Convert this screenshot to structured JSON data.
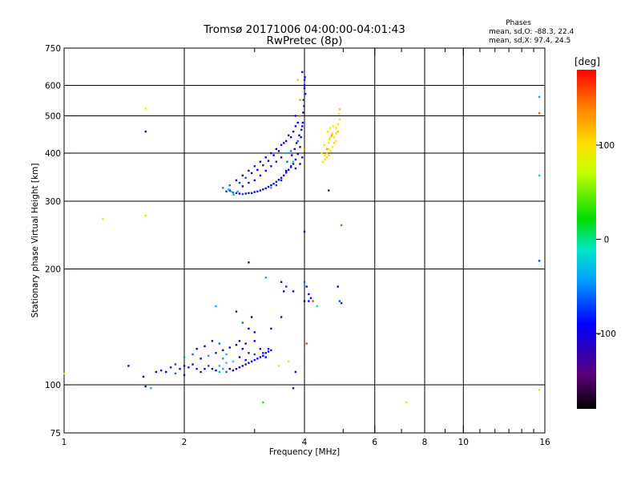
{
  "chart_data": {
    "type": "scatter",
    "title": "Tromsø 20171006 04:00:00-04:01:43",
    "subtitle": "RwPretec (8p)",
    "xlabel": "Frequency [MHz]",
    "ylabel": "Stationary phase Virtual Height [km]",
    "xscale": "log",
    "yscale": "log",
    "xlim": [
      1,
      16
    ],
    "ylim": [
      75,
      750
    ],
    "x_ticks": [
      1,
      2,
      4,
      6,
      8,
      10,
      16
    ],
    "x_tick_labels": [
      "1",
      "2",
      "4",
      "6",
      "8",
      "10",
      "16"
    ],
    "x_minor_ticks": [
      3,
      5,
      7,
      9,
      11,
      12,
      13,
      14,
      15
    ],
    "x_gridlines": [
      2,
      4,
      6,
      8,
      10
    ],
    "y_ticks": [
      75,
      100,
      200,
      300,
      400,
      500,
      600,
      750
    ],
    "y_tick_labels": [
      "75",
      "100",
      "200",
      "300",
      "400",
      "500",
      "600",
      "750"
    ],
    "y_gridlines": [
      100,
      200,
      300,
      400,
      500,
      600
    ],
    "phases_title": "Phases",
    "phases_o": "mean, sd,O: -88.3, 22.4",
    "phases_x": "mean, sd,X:  97.4, 24.5",
    "colorbar": {
      "label": "[deg]",
      "range": [
        -180,
        180
      ],
      "ticks": [
        100,
        0,
        -100
      ],
      "tick_labels": [
        "100",
        "0",
        "-100"
      ]
    },
    "points": [
      [
        2.55,
        318,
        -75
      ],
      [
        2.6,
        320,
        -90
      ],
      [
        2.65,
        316,
        -60
      ],
      [
        2.7,
        315,
        -80
      ],
      [
        2.75,
        314,
        -100
      ],
      [
        2.8,
        313,
        -70
      ],
      [
        2.85,
        314,
        -95
      ],
      [
        2.9,
        315,
        -85
      ],
      [
        2.95,
        315,
        -105
      ],
      [
        3.0,
        317,
        -90
      ],
      [
        3.05,
        318,
        -80
      ],
      [
        3.1,
        320,
        -100
      ],
      [
        3.15,
        322,
        -95
      ],
      [
        3.2,
        324,
        -85
      ],
      [
        3.25,
        327,
        -105
      ],
      [
        3.3,
        330,
        -90
      ],
      [
        3.35,
        333,
        -100
      ],
      [
        3.4,
        337,
        -80
      ],
      [
        3.45,
        341,
        -95
      ],
      [
        3.5,
        345,
        -110
      ],
      [
        3.55,
        350,
        -90
      ],
      [
        3.6,
        356,
        -100
      ],
      [
        3.65,
        362,
        -85
      ],
      [
        3.7,
        368,
        -95
      ],
      [
        3.75,
        375,
        -105
      ],
      [
        3.8,
        385,
        -90
      ],
      [
        3.85,
        398,
        -100
      ],
      [
        3.9,
        415,
        -85
      ],
      [
        3.92,
        440,
        -95
      ],
      [
        3.95,
        470,
        -90
      ],
      [
        3.97,
        510,
        -100
      ],
      [
        3.98,
        550,
        -85
      ],
      [
        4.0,
        590,
        -95
      ],
      [
        4.01,
        630,
        -90
      ],
      [
        3.95,
        650,
        -100
      ],
      [
        4.0,
        620,
        -80
      ],
      [
        2.6,
        330,
        -60
      ],
      [
        2.7,
        340,
        -90
      ],
      [
        2.8,
        350,
        -100
      ],
      [
        2.9,
        360,
        -95
      ],
      [
        3.0,
        370,
        -85
      ],
      [
        3.1,
        380,
        -105
      ],
      [
        3.2,
        390,
        -90
      ],
      [
        3.3,
        400,
        -100
      ],
      [
        3.4,
        410,
        -95
      ],
      [
        3.5,
        420,
        -85
      ],
      [
        3.6,
        430,
        -100
      ],
      [
        3.7,
        440,
        -90
      ],
      [
        2.75,
        335,
        -70
      ],
      [
        2.85,
        345,
        -65
      ],
      [
        2.95,
        355,
        -110
      ],
      [
        3.05,
        362,
        -95
      ],
      [
        3.15,
        372,
        -85
      ],
      [
        3.25,
        382,
        -100
      ],
      [
        3.35,
        395,
        -90
      ],
      [
        3.45,
        405,
        -105
      ],
      [
        3.55,
        425,
        -95
      ],
      [
        3.65,
        445,
        -85
      ],
      [
        3.75,
        455,
        -100
      ],
      [
        3.8,
        470,
        -90
      ],
      [
        3.85,
        480,
        -95
      ],
      [
        3.6,
        400,
        -30
      ],
      [
        3.7,
        405,
        -50
      ],
      [
        3.75,
        380,
        -20
      ],
      [
        3.85,
        430,
        -60
      ],
      [
        3.9,
        500,
        150
      ],
      [
        3.9,
        550,
        130
      ],
      [
        3.85,
        620,
        110
      ],
      [
        3.8,
        500,
        -100
      ],
      [
        3.3,
        325,
        -40
      ],
      [
        3.4,
        330,
        -70
      ],
      [
        3.5,
        340,
        -80
      ],
      [
        2.5,
        325,
        -50
      ],
      [
        2.62,
        318,
        -30
      ],
      [
        2.58,
        322,
        -20
      ],
      [
        2.66,
        312,
        -40
      ],
      [
        2.72,
        318,
        -35
      ],
      [
        3.62,
        380,
        -60
      ],
      [
        3.72,
        395,
        -90
      ],
      [
        3.78,
        410,
        -105
      ],
      [
        3.82,
        425,
        -95
      ],
      [
        3.88,
        445,
        -100
      ],
      [
        3.93,
        460,
        -85
      ],
      [
        3.96,
        480,
        -90
      ],
      [
        3.99,
        530,
        -95
      ],
      [
        4.02,
        570,
        -90
      ],
      [
        4.0,
        600,
        -85
      ],
      [
        3.1,
        350,
        -95
      ],
      [
        3.2,
        360,
        -100
      ],
      [
        3.3,
        370,
        -90
      ],
      [
        3.4,
        380,
        -80
      ],
      [
        3.5,
        390,
        -95
      ],
      [
        3.0,
        340,
        -105
      ],
      [
        2.9,
        335,
        -90
      ],
      [
        2.8,
        328,
        -100
      ],
      [
        3.6,
        360,
        -90
      ],
      [
        3.7,
        370,
        -85
      ],
      [
        3.8,
        365,
        -95
      ],
      [
        3.9,
        375,
        -90
      ],
      [
        3.95,
        390,
        -100
      ],
      [
        4.45,
        380,
        95
      ],
      [
        4.5,
        385,
        100
      ],
      [
        4.55,
        390,
        90
      ],
      [
        4.6,
        395,
        105
      ],
      [
        4.55,
        400,
        110
      ],
      [
        4.6,
        410,
        95
      ],
      [
        4.65,
        405,
        100
      ],
      [
        4.7,
        415,
        90
      ],
      [
        4.75,
        425,
        110
      ],
      [
        4.8,
        430,
        95
      ],
      [
        4.75,
        440,
        100
      ],
      [
        4.8,
        450,
        105
      ],
      [
        4.85,
        455,
        115
      ],
      [
        4.8,
        465,
        90
      ],
      [
        4.85,
        475,
        100
      ],
      [
        4.9,
        490,
        95
      ],
      [
        4.88,
        505,
        100
      ],
      [
        4.9,
        520,
        110
      ],
      [
        4.5,
        395,
        85
      ],
      [
        4.55,
        410,
        120
      ],
      [
        4.6,
        425,
        95
      ],
      [
        4.65,
        440,
        100
      ],
      [
        4.7,
        450,
        105
      ],
      [
        4.62,
        435,
        90
      ],
      [
        4.68,
        445,
        130
      ],
      [
        4.58,
        455,
        100
      ],
      [
        4.64,
        465,
        95
      ],
      [
        4.72,
        470,
        90
      ],
      [
        4.42,
        400,
        80
      ],
      [
        4.48,
        420,
        95
      ],
      [
        1.0,
        107,
        70
      ],
      [
        1.6,
        522,
        90
      ],
      [
        1.6,
        455,
        -100
      ],
      [
        1.25,
        270,
        90
      ],
      [
        1.6,
        275,
        90
      ],
      [
        15.5,
        560,
        -40
      ],
      [
        15.5,
        508,
        150
      ],
      [
        15.5,
        350,
        -20
      ],
      [
        15.5,
        210,
        -70
      ],
      [
        15.5,
        97,
        90
      ],
      [
        7.2,
        90,
        90
      ],
      [
        3.15,
        90,
        30
      ],
      [
        4.6,
        320,
        -130
      ],
      [
        4.95,
        260,
        160
      ],
      [
        4.05,
        128,
        160
      ],
      [
        4.0,
        250,
        -100
      ],
      [
        4.0,
        410,
        140
      ],
      [
        2.9,
        208,
        -110
      ],
      [
        3.2,
        190,
        -40
      ],
      [
        3.5,
        185,
        -100
      ],
      [
        3.6,
        180,
        -80
      ],
      [
        4.0,
        185,
        -60
      ],
      [
        4.05,
        180,
        -90
      ],
      [
        4.85,
        180,
        -100
      ],
      [
        3.55,
        175,
        -90
      ],
      [
        4.0,
        165,
        -100
      ],
      [
        4.1,
        165,
        -95
      ],
      [
        4.2,
        165,
        160
      ],
      [
        4.3,
        160,
        -20
      ],
      [
        4.9,
        165,
        -70
      ],
      [
        4.95,
        163,
        -80
      ],
      [
        2.7,
        155,
        -100
      ],
      [
        2.95,
        150,
        -90
      ],
      [
        2.9,
        140,
        -95
      ],
      [
        2.8,
        145,
        -60
      ],
      [
        2.4,
        160,
        -40
      ],
      [
        3.0,
        137,
        -100
      ],
      [
        3.5,
        150,
        -100
      ],
      [
        3.75,
        175,
        -90
      ],
      [
        4.1,
        172,
        -100
      ],
      [
        4.15,
        168,
        -95
      ],
      [
        2.75,
        130,
        -90
      ],
      [
        2.85,
        128,
        -100
      ],
      [
        3.0,
        130,
        -95
      ],
      [
        1.85,
        111,
        -80
      ],
      [
        1.9,
        113,
        -70
      ],
      [
        1.95,
        110,
        -90
      ],
      [
        2.0,
        112,
        -100
      ],
      [
        2.05,
        111,
        -85
      ],
      [
        2.1,
        113,
        -95
      ],
      [
        2.15,
        110,
        -80
      ],
      [
        2.2,
        108,
        -100
      ],
      [
        2.25,
        110,
        -90
      ],
      [
        2.3,
        112,
        -70
      ],
      [
        2.35,
        110,
        -95
      ],
      [
        2.4,
        109,
        -90
      ],
      [
        2.45,
        108,
        -40
      ],
      [
        2.5,
        110,
        -30
      ],
      [
        2.55,
        108,
        -60
      ],
      [
        2.6,
        110,
        -90
      ],
      [
        2.65,
        109,
        -95
      ],
      [
        2.7,
        110,
        -100
      ],
      [
        2.75,
        111,
        -105
      ],
      [
        2.8,
        112,
        -95
      ],
      [
        2.85,
        113,
        -90
      ],
      [
        2.9,
        114,
        -100
      ],
      [
        2.95,
        115,
        -95
      ],
      [
        3.0,
        116,
        -85
      ],
      [
        3.05,
        117,
        -100
      ],
      [
        3.1,
        118,
        -90
      ],
      [
        3.15,
        119,
        -95
      ],
      [
        3.2,
        121,
        -100
      ],
      [
        3.25,
        122,
        -90
      ],
      [
        3.3,
        123,
        -85
      ],
      [
        2.0,
        118,
        -50
      ],
      [
        2.1,
        120,
        -60
      ],
      [
        2.2,
        117,
        -100
      ],
      [
        2.3,
        119,
        -40
      ],
      [
        2.4,
        121,
        -80
      ],
      [
        2.5,
        123,
        -90
      ],
      [
        2.6,
        125,
        -95
      ],
      [
        2.7,
        127,
        -100
      ],
      [
        2.8,
        124,
        -90
      ],
      [
        2.9,
        121,
        -85
      ],
      [
        3.0,
        120,
        -70
      ],
      [
        3.1,
        124,
        -100
      ],
      [
        2.15,
        124,
        -95
      ],
      [
        2.25,
        126,
        -90
      ],
      [
        2.35,
        130,
        -100
      ],
      [
        2.45,
        128,
        -60
      ],
      [
        2.55,
        120,
        -30
      ],
      [
        2.65,
        115,
        -20
      ],
      [
        2.75,
        118,
        -90
      ],
      [
        2.85,
        116,
        -100
      ],
      [
        1.8,
        108,
        -90
      ],
      [
        1.9,
        107,
        -60
      ],
      [
        2.0,
        106,
        -100
      ],
      [
        1.75,
        109,
        -95
      ],
      [
        2.45,
        112,
        -30
      ],
      [
        2.55,
        114,
        -20
      ],
      [
        2.5,
        117,
        -40
      ],
      [
        3.15,
        121,
        -80
      ],
      [
        3.2,
        118,
        -95
      ],
      [
        3.25,
        124,
        -90
      ],
      [
        1.45,
        112,
        -100
      ],
      [
        1.58,
        105,
        -90
      ],
      [
        1.7,
        108,
        -95
      ],
      [
        1.6,
        99,
        -100
      ],
      [
        1.65,
        98,
        -30
      ],
      [
        3.75,
        98,
        -110
      ],
      [
        3.8,
        108,
        -90
      ],
      [
        3.45,
        112,
        90
      ],
      [
        3.65,
        115,
        90
      ],
      [
        3.3,
        140,
        -90
      ]
    ]
  }
}
